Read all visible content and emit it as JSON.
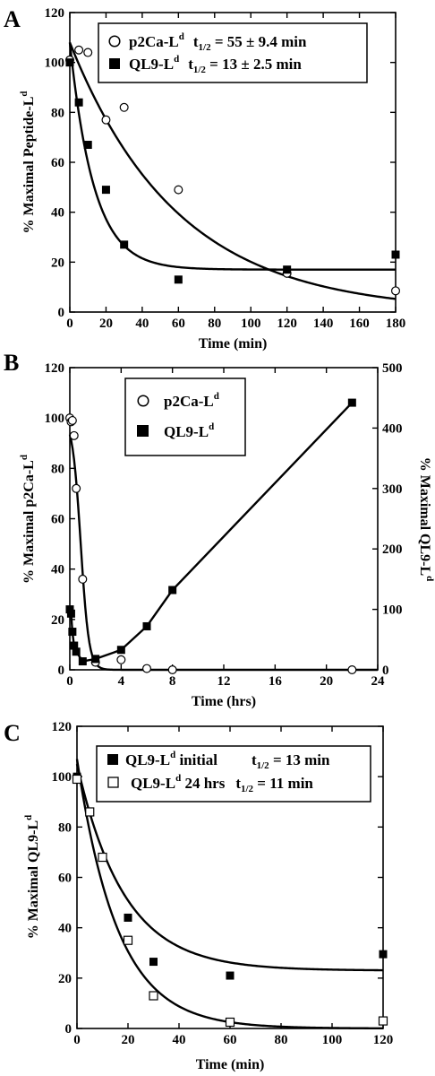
{
  "figure": {
    "panels": [
      {
        "letter": "A",
        "xlabel": "Time (min)",
        "ylabel_main": "Maximal Peptide-L",
        "ylabel_sup": "d",
        "legend": [
          {
            "name": "p2Ca-L",
            "sup": "d",
            "t_prefix": "t",
            "t_sub": "1/2",
            "t_value": " = 55 ± 9.4 min"
          },
          {
            "name": "QL9-L",
            "sup": "d",
            "t_prefix": "t",
            "t_sub": "1/2",
            "t_value": " = 13 ± 2.5 min"
          }
        ]
      },
      {
        "letter": "B",
        "xlabel": "Time (hrs)",
        "ylabel_main": "Maximal p2Ca-L",
        "ylabel_sup": "d",
        "ylabel2_main": "Maximal QL9-L",
        "ylabel2_sup": "d",
        "legend": [
          {
            "name": "p2Ca-L",
            "sup": "d"
          },
          {
            "name": "QL9-L",
            "sup": "d"
          }
        ]
      },
      {
        "letter": "C",
        "xlabel": "Time (min)",
        "ylabel_main": "Maximal QL9-L",
        "ylabel_sup": "d",
        "legend": [
          {
            "name": "QL9-L",
            "sup": "d",
            "extra": " initial",
            "t_prefix": "t",
            "t_sub": "1/2",
            "t_value": " = 13 min"
          },
          {
            "name": "QL9-L",
            "sup": "d",
            "extra": " 24 hrs",
            "t_prefix": "t",
            "t_sub": "1/2",
            "t_value": " = 11 min"
          }
        ]
      }
    ]
  },
  "chart_data": [
    {
      "type": "scatter",
      "panel": "A",
      "xlabel": "Time (min)",
      "ylabel": "% Maximal Peptide-Ld",
      "xlim": [
        0,
        180
      ],
      "ylim": [
        0,
        120
      ],
      "xticks": [
        0,
        20,
        40,
        60,
        80,
        100,
        120,
        140,
        160,
        180
      ],
      "yticks": [
        0,
        20,
        40,
        60,
        80,
        100,
        120
      ],
      "series": [
        {
          "name": "p2Ca-Ld",
          "marker": "open-circle",
          "half_life": "55 ± 9.4 min",
          "x": [
            0,
            5,
            10,
            20,
            30,
            60,
            120,
            180
          ],
          "y": [
            101,
            105,
            104,
            77,
            82,
            49,
            15.5,
            8.5
          ],
          "fit": {
            "model": "exp-decay",
            "A": 108,
            "k": 0.0168,
            "c": 0
          }
        },
        {
          "name": "QL9-Ld",
          "marker": "filled-square",
          "half_life": "13 ± 2.5 min",
          "x": [
            0,
            5,
            10,
            20,
            30,
            60,
            120,
            180
          ],
          "y": [
            100,
            84,
            67,
            49,
            27,
            13,
            17,
            23
          ],
          "fit": {
            "model": "exp-decay",
            "A": 91,
            "k": 0.075,
            "c": 17
          }
        }
      ]
    },
    {
      "type": "line",
      "panel": "B",
      "xlabel": "Time (hrs)",
      "ylabel": "% Maximal p2Ca-Ld",
      "ylabel_right": "% Maximal QL9-Ld",
      "xlim": [
        0,
        24
      ],
      "ylim": [
        0,
        120
      ],
      "ylim_right": [
        0,
        500
      ],
      "xticks": [
        0,
        4,
        8,
        12,
        16,
        20,
        24
      ],
      "yticks": [
        0,
        20,
        40,
        60,
        80,
        100,
        120
      ],
      "yticks_right": [
        0,
        100,
        200,
        300,
        400,
        500
      ],
      "series": [
        {
          "name": "p2Ca-Ld",
          "marker": "open-circle",
          "axis": "left",
          "x": [
            0,
            0.1,
            0.2,
            0.33,
            0.5,
            1,
            2,
            4,
            6,
            8,
            22
          ],
          "y": [
            100,
            98.5,
            99,
            93,
            72,
            36,
            3,
            4,
            0.5,
            0,
            0
          ],
          "fit": {
            "model": "sigmoid-decay",
            "A": 100,
            "x50": 0.85,
            "s": 0.32
          }
        },
        {
          "name": "QL9-Ld",
          "marker": "filled-square",
          "axis": "right",
          "x": [
            0,
            0.1,
            0.2,
            0.33,
            0.5,
            1,
            2,
            4,
            6,
            8,
            22
          ],
          "y": [
            100,
            93,
            63,
            40,
            30,
            14,
            18,
            33,
            72,
            132,
            442
          ]
        }
      ]
    },
    {
      "type": "scatter",
      "panel": "C",
      "xlabel": "Time (min)",
      "ylabel": "% Maximal QL9-Ld",
      "xlim": [
        0,
        120
      ],
      "ylim": [
        0,
        120
      ],
      "xticks": [
        0,
        20,
        40,
        60,
        80,
        100,
        120
      ],
      "yticks": [
        0,
        20,
        40,
        60,
        80,
        100,
        120
      ],
      "series": [
        {
          "name": "QL9-Ld initial",
          "marker": "filled-square",
          "half_life": "13 min",
          "x": [
            0,
            5,
            10,
            20,
            30,
            60,
            120
          ],
          "y": [
            100,
            86,
            68,
            44,
            26.5,
            21,
            29.5
          ],
          "fit": {
            "model": "exp-decay",
            "A": 82,
            "k": 0.054,
            "c": 23
          }
        },
        {
          "name": "QL9-Ld 24 hrs",
          "marker": "open-square",
          "half_life": "11 min",
          "x": [
            0,
            5,
            10,
            20,
            30,
            60,
            120
          ],
          "y": [
            99,
            86,
            68,
            35,
            13,
            2.5,
            3
          ],
          "fit": {
            "model": "exp-decay",
            "A": 107,
            "k": 0.0625,
            "c": 0
          }
        }
      ]
    }
  ]
}
